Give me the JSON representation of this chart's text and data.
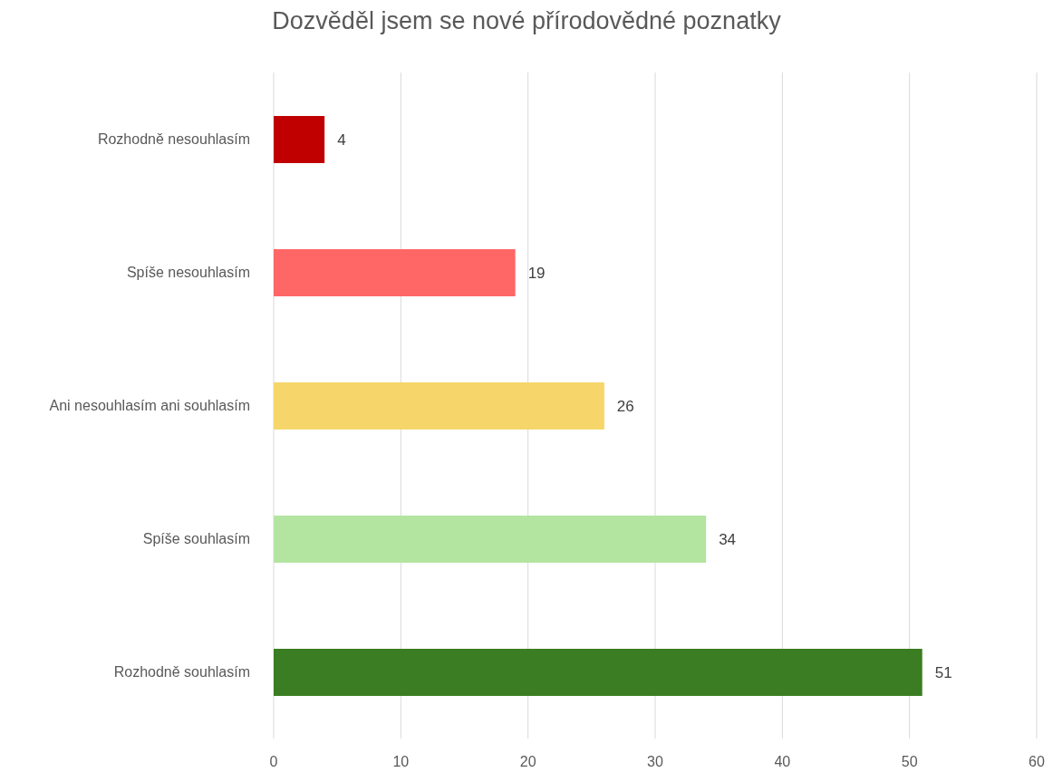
{
  "chart_data": {
    "type": "bar",
    "orientation": "horizontal",
    "title": "Dozvěděl jsem se nové přírodovědné poznatky",
    "categories": [
      "Rozhodně nesouhlasím",
      "Spíše nesouhlasím",
      "Ani nesouhlasím ani souhlasím",
      "Spíše souhlasím",
      "Rozhodně souhlasím"
    ],
    "values": [
      4,
      19,
      26,
      34,
      51
    ],
    "colors": [
      "#c00000",
      "#ff6666",
      "#f6d66a",
      "#b3e5a1",
      "#3a7d22"
    ],
    "xlim": [
      0,
      60
    ],
    "xticks": [
      0,
      10,
      20,
      30,
      40,
      50,
      60
    ],
    "grid": "x",
    "data_labels": true
  }
}
